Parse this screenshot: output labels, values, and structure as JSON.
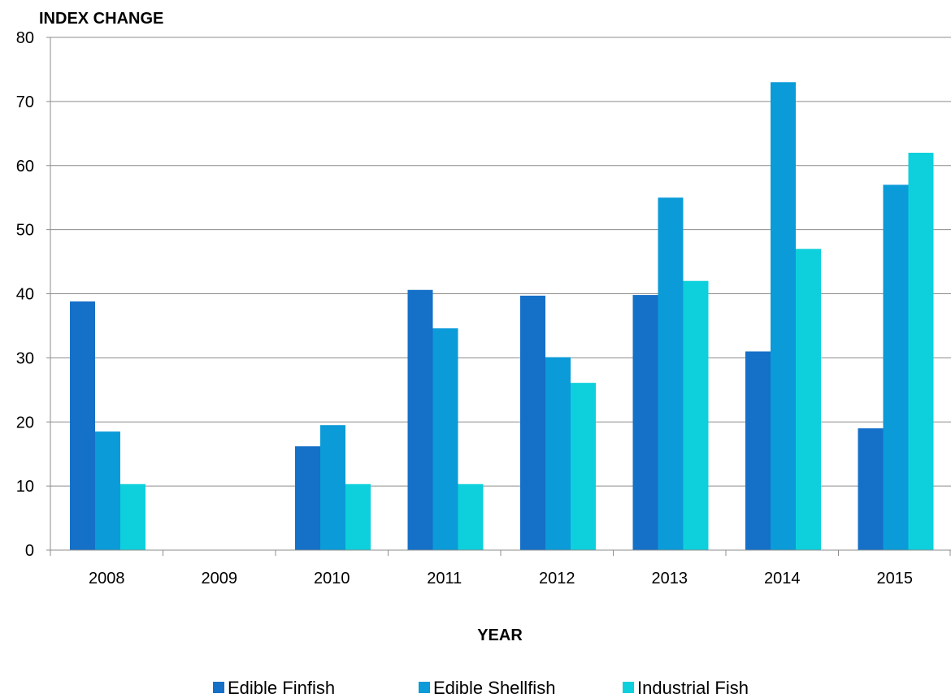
{
  "chart_data": {
    "type": "bar",
    "ylabel": "INDEX CHANGE",
    "xlabel": "YEAR",
    "categories": [
      "2008",
      "2009",
      "2010",
      "2011",
      "2012",
      "2013",
      "2014",
      "2015"
    ],
    "ylim": [
      0,
      80
    ],
    "yticks": [
      0,
      10,
      20,
      30,
      40,
      50,
      60,
      70,
      80
    ],
    "grid": true,
    "legend_position": "bottom",
    "series": [
      {
        "name": "Edible Finfish",
        "color": "#1570C8",
        "values": [
          38.8,
          null,
          16.2,
          40.6,
          39.7,
          39.8,
          31,
          19
        ]
      },
      {
        "name": "Edible Shellfish",
        "color": "#0A9BD8",
        "values": [
          18.5,
          null,
          19.5,
          34.6,
          30.1,
          55,
          73,
          57
        ]
      },
      {
        "name": "Industrial Fish",
        "color": "#0ED0DC",
        "values": [
          10.3,
          null,
          10.3,
          10.3,
          26.1,
          42,
          47,
          62
        ]
      }
    ]
  }
}
